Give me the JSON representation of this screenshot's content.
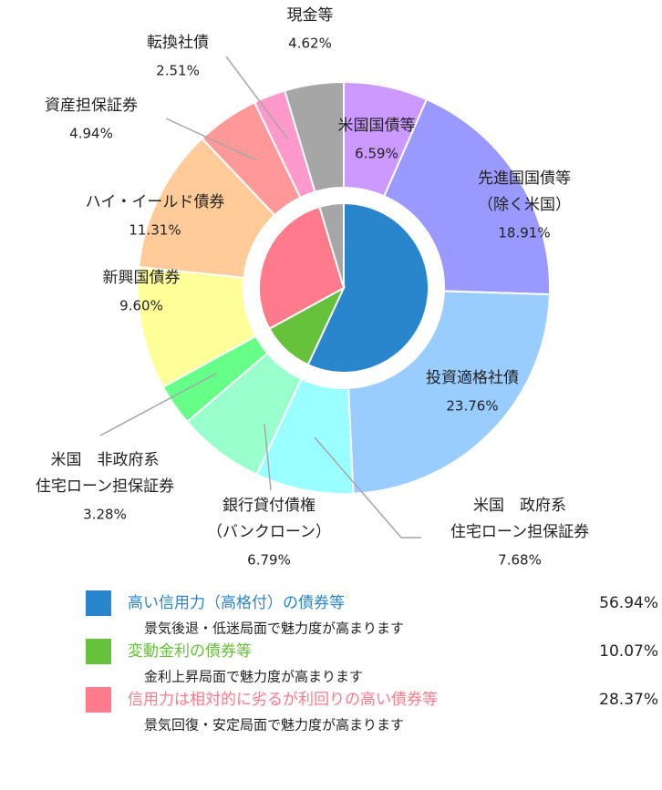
{
  "chart_data": {
    "type": "nested_pie",
    "outer": [
      {
        "name": [
          "米国国債等"
        ],
        "value": 6.59,
        "value_label": "6.59%",
        "color": "#cc99ff"
      },
      {
        "name": [
          "先進国国債等",
          "（除く米国）"
        ],
        "value": 18.91,
        "value_label": "18.91%",
        "color": "#9999ff"
      },
      {
        "name": [
          "投資適格社債"
        ],
        "value": 23.76,
        "value_label": "23.76%",
        "color": "#99ccff"
      },
      {
        "name": [
          "米国　政府系",
          "住宅ローン担保証券"
        ],
        "value": 7.68,
        "value_label": "7.68%",
        "color": "#99ffff"
      },
      {
        "name": [
          "銀行貸付債権",
          "（バンクローン）"
        ],
        "value": 6.79,
        "value_label": "6.79%",
        "color": "#99ffcc"
      },
      {
        "name": [
          "米国　非政府系",
          "住宅ローン担保証券"
        ],
        "value": 3.28,
        "value_label": "3.28%",
        "color": "#66ff88"
      },
      {
        "name": [
          "新興国債券"
        ],
        "value": 9.6,
        "value_label": "9.60%",
        "color": "#ffff99"
      },
      {
        "name": [
          "ハイ・イールド債券"
        ],
        "value": 11.31,
        "value_label": "11.31%",
        "color": "#ffcc99"
      },
      {
        "name": [
          "資産担保証券"
        ],
        "value": 4.94,
        "value_label": "4.94%",
        "color": "#ff9999"
      },
      {
        "name": [
          "転換社債"
        ],
        "value": 2.51,
        "value_label": "2.51%",
        "color": "#ff99cc"
      },
      {
        "name": [
          "現金等"
        ],
        "value": 4.62,
        "value_label": "4.62%",
        "color": "#a6a6a6"
      }
    ],
    "inner": [
      {
        "name": "高い信用力（高格付）の債券等",
        "value": 56.94,
        "value_label": "56.94%",
        "color": "#2a86cc",
        "description": "景気後退・低迷局面で魅力度が高まります"
      },
      {
        "name": "変動金利の債券等",
        "value": 10.07,
        "value_label": "10.07%",
        "color": "#66c23a",
        "description": "金利上昇局面で魅力度が高まります"
      },
      {
        "name": "信用力は相対的に劣るが利回りの高い債券等",
        "value": 28.37,
        "value_label": "28.37%",
        "color": "#ff7a8a",
        "description": "景気回復・安定局面で魅力度が高まります"
      },
      {
        "value": 4.62,
        "color": "#a6a6a6"
      }
    ]
  }
}
